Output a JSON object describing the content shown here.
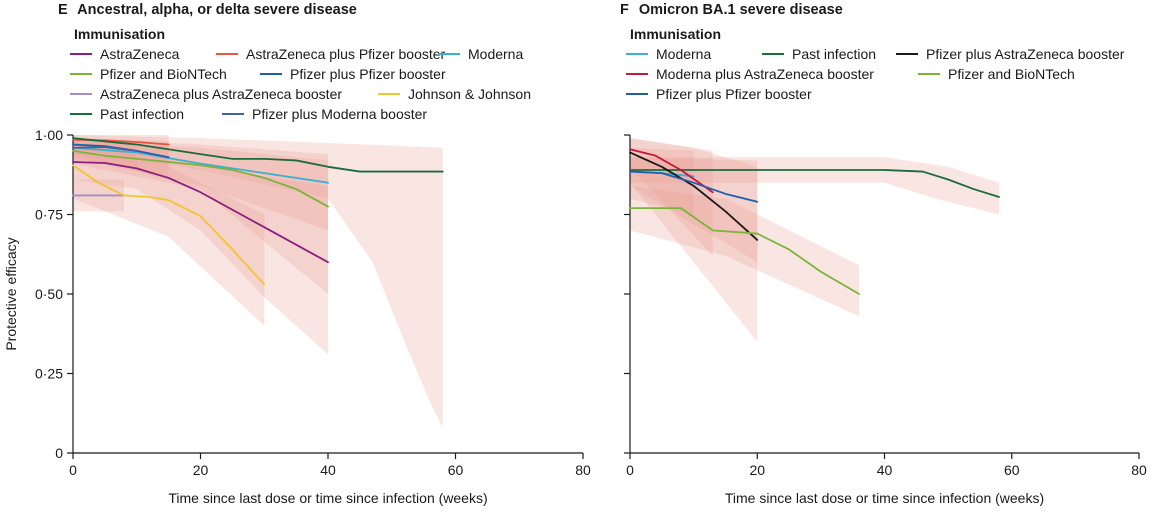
{
  "chart_data": [
    {
      "type": "line",
      "panel_letter": "E",
      "title": "Ancestral, alpha, or delta severe disease",
      "legend_title": "Immunisation",
      "xlabel": "Time since last dose or time since infection (weeks)",
      "ylabel": "Protective efficacy",
      "xlim": [
        0,
        80
      ],
      "ylim": [
        0,
        1
      ],
      "x_ticks": [
        "0",
        "20",
        "40",
        "60",
        "80"
      ],
      "y_ticks": [
        "0",
        "0·25",
        "0·50",
        "0·75",
        "1·00"
      ],
      "grid": false,
      "series": [
        {
          "name": "AstraZeneca",
          "color": "#8b1e7f",
          "points": [
            [
              0,
              0.915
            ],
            [
              5,
              0.912
            ],
            [
              10,
              0.895
            ],
            [
              15,
              0.865
            ],
            [
              20,
              0.82
            ],
            [
              25,
              0.765
            ],
            [
              30,
              0.71
            ],
            [
              35,
              0.655
            ],
            [
              40,
              0.6
            ]
          ],
          "band_upper": [
            [
              0,
              0.97
            ],
            [
              10,
              0.95
            ],
            [
              20,
              0.91
            ],
            [
              30,
              0.87
            ],
            [
              40,
              0.84
            ]
          ],
          "band_lower": [
            [
              0,
              0.86
            ],
            [
              10,
              0.83
            ],
            [
              20,
              0.7
            ],
            [
              30,
              0.49
            ],
            [
              40,
              0.31
            ]
          ]
        },
        {
          "name": "AstraZeneca plus Pfizer booster",
          "color": "#e8563f",
          "points": [
            [
              0,
              0.985
            ],
            [
              5,
              0.983
            ],
            [
              10,
              0.978
            ],
            [
              15,
              0.97
            ]
          ],
          "band_upper": [
            [
              0,
              1.0
            ],
            [
              15,
              1.0
            ]
          ],
          "band_lower": [
            [
              0,
              0.94
            ],
            [
              15,
              0.9
            ]
          ]
        },
        {
          "name": "Moderna",
          "color": "#3bb0d0",
          "points": [
            [
              0,
              0.96
            ],
            [
              10,
              0.945
            ],
            [
              20,
              0.91
            ],
            [
              30,
              0.88
            ],
            [
              40,
              0.85
            ]
          ],
          "band_upper": [
            [
              0,
              0.99
            ],
            [
              20,
              0.97
            ],
            [
              40,
              0.94
            ]
          ],
          "band_lower": [
            [
              0,
              0.93
            ],
            [
              20,
              0.84
            ],
            [
              40,
              0.7
            ]
          ]
        },
        {
          "name": "Pfizer and BioNTech",
          "color": "#7ab53a",
          "points": [
            [
              0,
              0.95
            ],
            [
              5,
              0.935
            ],
            [
              10,
              0.925
            ],
            [
              15,
              0.915
            ],
            [
              20,
              0.905
            ],
            [
              25,
              0.89
            ],
            [
              30,
              0.865
            ],
            [
              35,
              0.83
            ],
            [
              40,
              0.775
            ]
          ],
          "band_upper": [
            [
              0,
              0.98
            ],
            [
              20,
              0.96
            ],
            [
              40,
              0.92
            ]
          ],
          "band_lower": [
            [
              0,
              0.91
            ],
            [
              20,
              0.83
            ],
            [
              40,
              0.5
            ]
          ]
        },
        {
          "name": "Pfizer plus Pfizer booster",
          "color": "#1f5fb0",
          "points": [
            [
              0,
              0.97
            ],
            [
              5,
              0.965
            ],
            [
              10,
              0.95
            ],
            [
              15,
              0.93
            ]
          ],
          "band_upper": [
            [
              0,
              0.99
            ],
            [
              15,
              0.98
            ]
          ],
          "band_lower": [
            [
              0,
              0.94
            ],
            [
              15,
              0.86
            ]
          ]
        },
        {
          "name": "AstraZeneca plus AstraZeneca booster",
          "color": "#a48cd0",
          "points": [
            [
              0,
              0.81
            ],
            [
              4,
              0.81
            ],
            [
              8,
              0.81
            ]
          ],
          "band_upper": [
            [
              0,
              0.86
            ],
            [
              8,
              0.86
            ]
          ],
          "band_lower": [
            [
              0,
              0.76
            ],
            [
              8,
              0.76
            ]
          ]
        },
        {
          "name": "Johnson & Johnson",
          "color": "#f4c430",
          "points": [
            [
              0,
              0.905
            ],
            [
              4,
              0.85
            ],
            [
              8,
              0.81
            ],
            [
              12,
              0.805
            ],
            [
              15,
              0.795
            ],
            [
              20,
              0.745
            ],
            [
              25,
              0.64
            ],
            [
              30,
              0.53
            ]
          ],
          "band_upper": [
            [
              0,
              0.95
            ],
            [
              15,
              0.9
            ],
            [
              30,
              0.75
            ]
          ],
          "band_lower": [
            [
              0,
              0.8
            ],
            [
              15,
              0.68
            ],
            [
              30,
              0.4
            ]
          ]
        },
        {
          "name": "Past infection",
          "color": "#1c6b3c",
          "points": [
            [
              0,
              0.99
            ],
            [
              10,
              0.97
            ],
            [
              20,
              0.94
            ],
            [
              25,
              0.925
            ],
            [
              30,
              0.925
            ],
            [
              35,
              0.92
            ],
            [
              40,
              0.9
            ],
            [
              45,
              0.885
            ],
            [
              50,
              0.885
            ],
            [
              58,
              0.885
            ]
          ],
          "band_upper": [
            [
              0,
              1.0
            ],
            [
              20,
              0.99
            ],
            [
              40,
              0.975
            ],
            [
              58,
              0.96
            ]
          ],
          "band_lower": [
            [
              0,
              0.96
            ],
            [
              20,
              0.89
            ],
            [
              40,
              0.8
            ],
            [
              47,
              0.6
            ],
            [
              52,
              0.35
            ],
            [
              56,
              0.16
            ],
            [
              58,
              0.08
            ]
          ]
        },
        {
          "name": "Pfizer plus Moderna booster",
          "color": "#44639e",
          "points": [
            [
              0,
              0.96
            ],
            [
              5,
              0.962
            ],
            [
              10,
              0.95
            ]
          ],
          "band_upper": [
            [
              0,
              0.99
            ],
            [
              10,
              0.98
            ]
          ],
          "band_lower": [
            [
              0,
              0.92
            ],
            [
              10,
              0.9
            ]
          ]
        }
      ]
    },
    {
      "type": "line",
      "panel_letter": "F",
      "title": "Omicron BA.1 severe disease",
      "legend_title": "Immunisation",
      "xlabel": "Time since last dose or time since infection (weeks)",
      "ylabel": "",
      "xlim": [
        0,
        80
      ],
      "ylim": [
        0,
        1
      ],
      "x_ticks": [
        "0",
        "20",
        "40",
        "60",
        "80"
      ],
      "y_ticks": [],
      "grid": false,
      "series": [
        {
          "name": "Moderna",
          "color": "#3bb0d0",
          "points": [
            [
              0,
              0.885
            ],
            [
              5,
              0.88
            ],
            [
              10,
              0.87
            ]
          ],
          "band_upper": [
            [
              0,
              0.96
            ],
            [
              10,
              0.95
            ]
          ],
          "band_lower": [
            [
              0,
              0.8
            ],
            [
              10,
              0.75
            ]
          ]
        },
        {
          "name": "Past infection",
          "color": "#1c6b3c",
          "points": [
            [
              0,
              0.89
            ],
            [
              20,
              0.89
            ],
            [
              40,
              0.89
            ],
            [
              46,
              0.885
            ],
            [
              50,
              0.86
            ],
            [
              54,
              0.83
            ],
            [
              58,
              0.805
            ]
          ],
          "band_upper": [
            [
              0,
              0.93
            ],
            [
              40,
              0.93
            ],
            [
              50,
              0.9
            ],
            [
              58,
              0.85
            ]
          ],
          "band_lower": [
            [
              0,
              0.85
            ],
            [
              40,
              0.85
            ],
            [
              48,
              0.8
            ],
            [
              58,
              0.75
            ]
          ]
        },
        {
          "name": "Pfizer plus AstraZeneca booster",
          "color": "#1a1a1a",
          "points": [
            [
              0,
              0.945
            ],
            [
              5,
              0.9
            ],
            [
              10,
              0.84
            ],
            [
              15,
              0.76
            ],
            [
              20,
              0.67
            ]
          ],
          "band_upper": [
            [
              0,
              0.99
            ],
            [
              10,
              0.96
            ],
            [
              20,
              0.9
            ]
          ],
          "band_lower": [
            [
              0,
              0.85
            ],
            [
              10,
              0.6
            ],
            [
              20,
              0.35
            ]
          ]
        },
        {
          "name": "Moderna plus AstraZeneca booster",
          "color": "#c8163e",
          "points": [
            [
              0,
              0.955
            ],
            [
              4,
              0.935
            ],
            [
              8,
              0.89
            ],
            [
              13,
              0.82
            ]
          ],
          "band_upper": [
            [
              0,
              0.99
            ],
            [
              13,
              0.95
            ]
          ],
          "band_lower": [
            [
              0,
              0.9
            ],
            [
              13,
              0.62
            ]
          ]
        },
        {
          "name": "Pfizer and BioNTech",
          "color": "#7ab53a",
          "points": [
            [
              0,
              0.77
            ],
            [
              8,
              0.77
            ],
            [
              13,
              0.7
            ],
            [
              20,
              0.69
            ],
            [
              25,
              0.64
            ],
            [
              30,
              0.57
            ],
            [
              36,
              0.5
            ]
          ],
          "band_upper": [
            [
              0,
              0.84
            ],
            [
              15,
              0.8
            ],
            [
              36,
              0.59
            ]
          ],
          "band_lower": [
            [
              0,
              0.7
            ],
            [
              15,
              0.62
            ],
            [
              36,
              0.43
            ]
          ]
        },
        {
          "name": "Pfizer plus Pfizer booster",
          "color": "#1f5fb0",
          "points": [
            [
              0,
              0.885
            ],
            [
              5,
              0.88
            ],
            [
              10,
              0.85
            ],
            [
              15,
              0.815
            ],
            [
              20,
              0.79
            ]
          ],
          "band_upper": [
            [
              0,
              0.93
            ],
            [
              20,
              0.92
            ]
          ],
          "band_lower": [
            [
              0,
              0.84
            ],
            [
              20,
              0.6
            ]
          ]
        }
      ]
    }
  ]
}
